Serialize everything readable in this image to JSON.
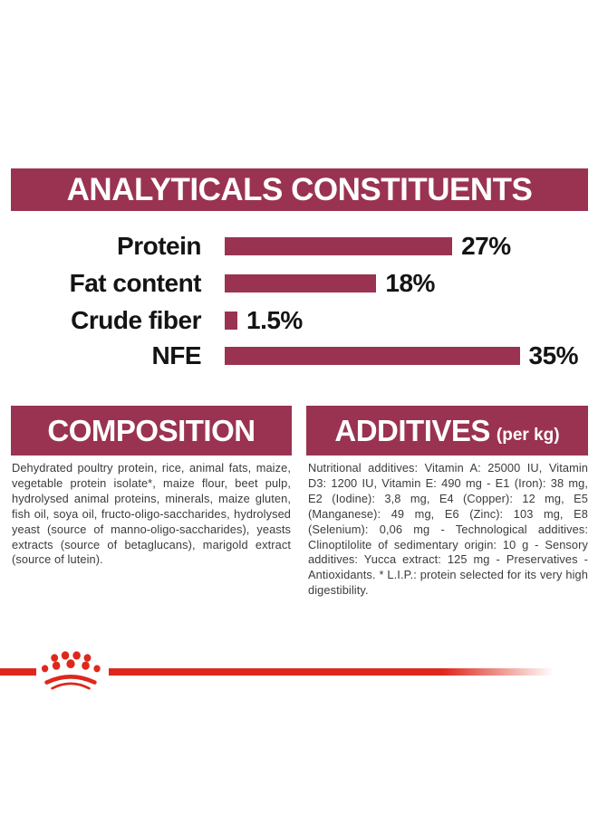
{
  "theme": {
    "maroon": "#9A3351",
    "brand_red": "#DD281B",
    "body_text": "#3b3b3b",
    "label_text": "#141414",
    "background": "#ffffff"
  },
  "header": {
    "title": "ANALYTICALS CONSTITUENTS"
  },
  "chart_data": {
    "type": "bar",
    "orientation": "horizontal",
    "title": "ANALYTICALS CONSTITUENTS",
    "categories": [
      "Protein",
      "Fat content",
      "Crude fiber",
      "NFE"
    ],
    "values": [
      27,
      18,
      1.5,
      35
    ],
    "value_labels": [
      "27%",
      "18%",
      "1.5%",
      "35%"
    ],
    "unit": "%",
    "bar_color": "#9A3351",
    "xlim": [
      0,
      38
    ],
    "grid": false,
    "legend": "none"
  },
  "sections": {
    "composition": {
      "title": "COMPOSITION",
      "body": "Dehydrated poultry protein, rice, animal fats, maize, vegetable protein isolate*, maize flour, beet pulp, hydrolysed animal proteins, minerals, maize gluten, fish oil, soya oil, fructo-oligo-saccharides, hydrolysed yeast (source of manno-oligo-saccharides), yeasts extracts (source of betaglucans), marigold extract (source of lutein)."
    },
    "additives": {
      "title": "ADDITIVES",
      "title_suffix": "(per kg)",
      "body": "Nutritional additives: Vitamin A: 25000 IU, Vitamin D3: 1200 IU, Vitamin E: 490 mg - E1 (Iron): 38 mg, E2 (Iodine): 3,8 mg, E4 (Copper): 12 mg, E5 (Manganese): 49 mg, E6 (Zinc): 103 mg, E8 (Selenium): 0,06 mg - Technological additives: Clinoptilolite of sedimentary origin: 10 g - Sensory additives: Yucca extract: 125 mg - Preservatives - Antioxidants. * L.I.P.: protein selected for its very high digestibility."
    }
  },
  "footer": {
    "brand_icon": "royal-canin-crown-icon"
  }
}
